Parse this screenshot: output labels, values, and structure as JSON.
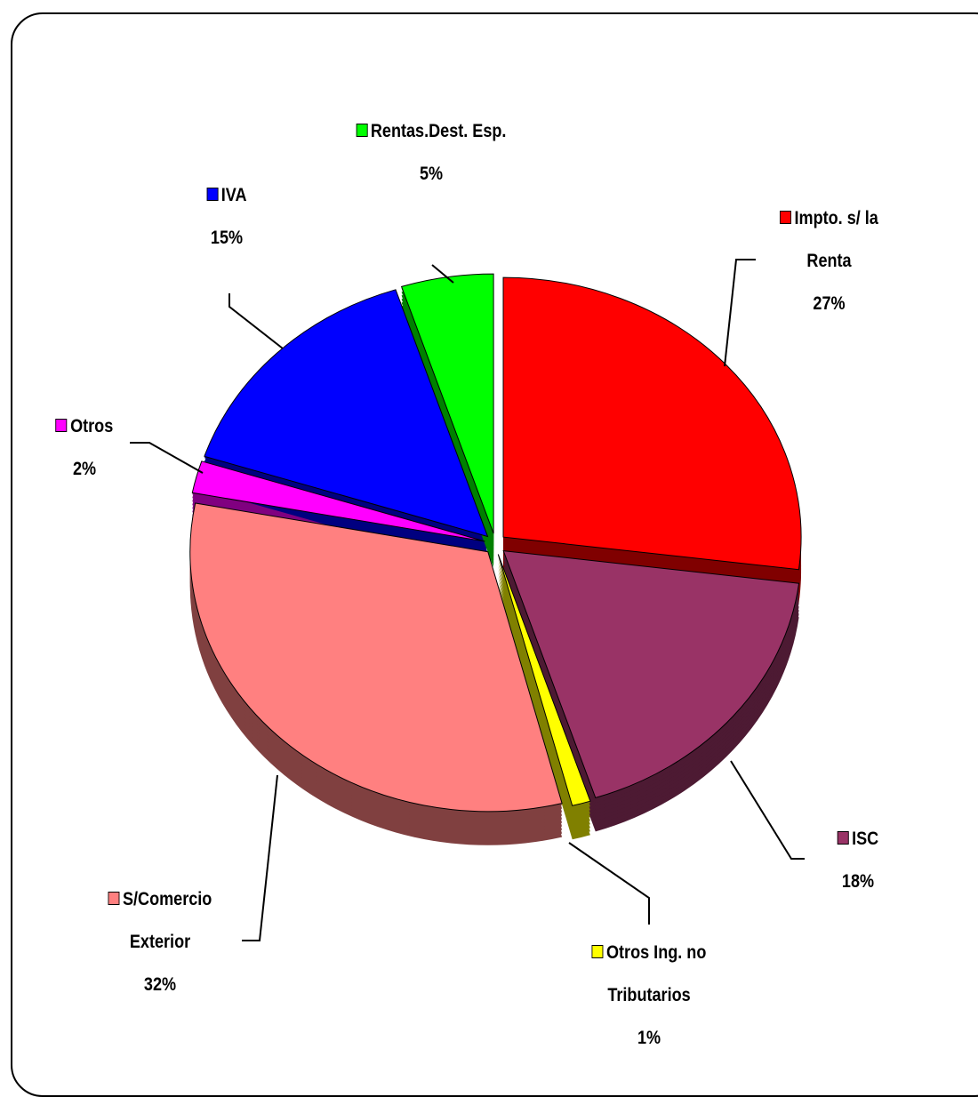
{
  "chart_data": {
    "type": "pie",
    "categories": [
      "Impto. s/ la Renta",
      "ISC",
      "Otros Ing. no Tributarios",
      "S/Comercio Exterior",
      "Otros",
      "IVA",
      "Rentas.Dest. Esp."
    ],
    "values": [
      27,
      18,
      1,
      32,
      2,
      15,
      5
    ],
    "value_labels": [
      "27%",
      "18%",
      "1%",
      "32%",
      "2%",
      "15%",
      "5%"
    ],
    "colors": [
      "#ff0000",
      "#993366",
      "#ffff00",
      "#ff8080",
      "#ff00ff",
      "#0000ff",
      "#00ff00"
    ]
  }
}
